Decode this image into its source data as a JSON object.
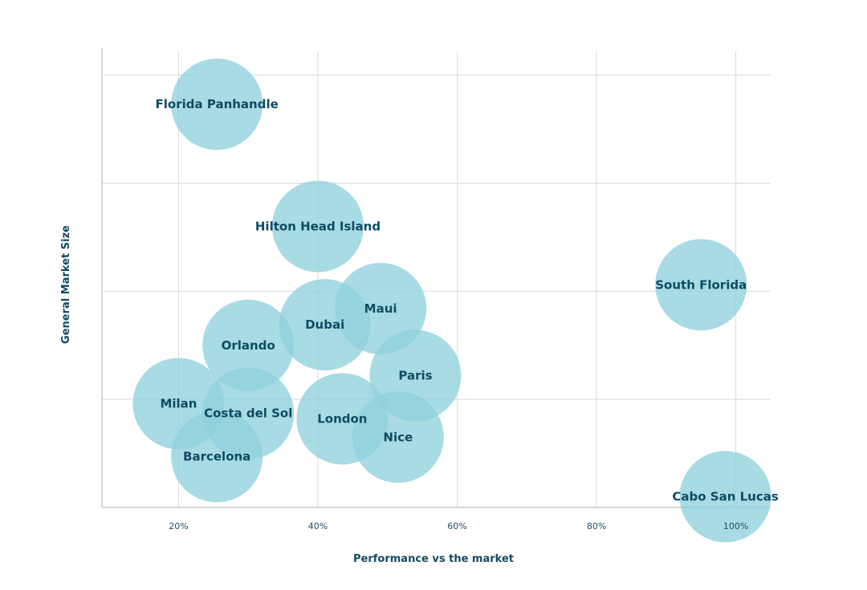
{
  "chart_data": {
    "type": "scatter",
    "title": "",
    "xlabel": "Performance vs the market",
    "ylabel": "General Market Size",
    "xlim": [
      9,
      105
    ],
    "ylim": [
      0,
      4.25
    ],
    "x_ticks": [
      20,
      40,
      60,
      80,
      100
    ],
    "x_tick_labels": [
      "20%",
      "40%",
      "60%",
      "80%",
      "100%"
    ],
    "y_gridlines": [
      1,
      2,
      3,
      4
    ],
    "grid": true,
    "legend": "none",
    "bubble_color": "#8fd1dc",
    "label_color": "#0f4c63",
    "points": [
      {
        "label": "Florida Panhandle",
        "x": 25.5,
        "y": 3.73
      },
      {
        "label": "Hilton Head Island",
        "x": 40,
        "y": 2.6
      },
      {
        "label": "South Florida",
        "x": 95,
        "y": 2.06
      },
      {
        "label": "Maui",
        "x": 49,
        "y": 1.84
      },
      {
        "label": "Dubai",
        "x": 41,
        "y": 1.69
      },
      {
        "label": "Orlando",
        "x": 30,
        "y": 1.5
      },
      {
        "label": "Paris",
        "x": 54,
        "y": 1.22
      },
      {
        "label": "Milan",
        "x": 20,
        "y": 0.96
      },
      {
        "label": "Costa del Sol",
        "x": 30,
        "y": 0.87
      },
      {
        "label": "London",
        "x": 43.5,
        "y": 0.82
      },
      {
        "label": "Nice",
        "x": 51.5,
        "y": 0.65
      },
      {
        "label": "Barcelona",
        "x": 25.5,
        "y": 0.47
      },
      {
        "label": "Cabo San Lucas",
        "x": 98.5,
        "y": 0.1
      }
    ]
  }
}
